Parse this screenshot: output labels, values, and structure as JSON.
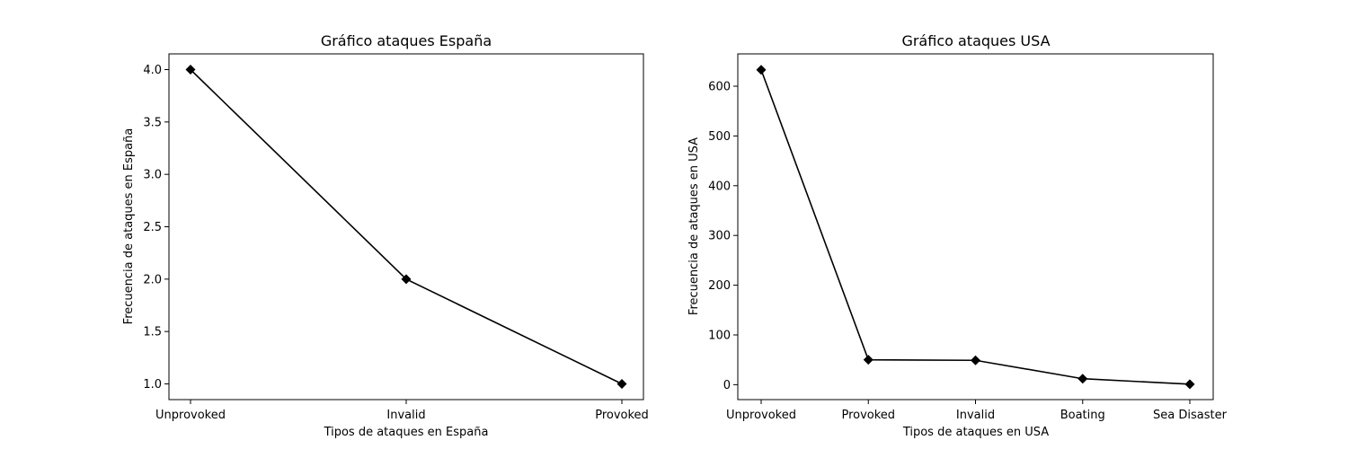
{
  "chart_data": [
    {
      "type": "line",
      "title": "Gráfico ataques España",
      "xlabel": "Tipos de ataques en España",
      "ylabel": "Frecuencia de ataques en España",
      "categories": [
        "Unprovoked",
        "Invalid",
        "Provoked"
      ],
      "values": [
        4,
        2,
        1
      ],
      "ylim": [
        0.85,
        4.15
      ],
      "yticks": [
        1.0,
        1.5,
        2.0,
        2.5,
        3.0,
        3.5,
        4.0
      ],
      "ytick_labels": [
        "1.0",
        "1.5",
        "2.0",
        "2.5",
        "3.0",
        "3.5",
        "4.0"
      ],
      "marker": "diamond",
      "color": "#000000",
      "grid": false
    },
    {
      "type": "line",
      "title": "Gráfico ataques USA",
      "xlabel": "Tipos de ataques en USA",
      "ylabel": "Frecuencia de ataques en USA",
      "categories": [
        "Unprovoked",
        "Provoked",
        "Invalid",
        "Boating",
        "Sea Disaster"
      ],
      "values": [
        633,
        50,
        49,
        12,
        1
      ],
      "ylim": [
        -30,
        665
      ],
      "yticks": [
        0,
        100,
        200,
        300,
        400,
        500,
        600
      ],
      "ytick_labels": [
        "0",
        "100",
        "200",
        "300",
        "400",
        "500",
        "600"
      ],
      "marker": "diamond",
      "color": "#000000",
      "grid": false
    }
  ]
}
